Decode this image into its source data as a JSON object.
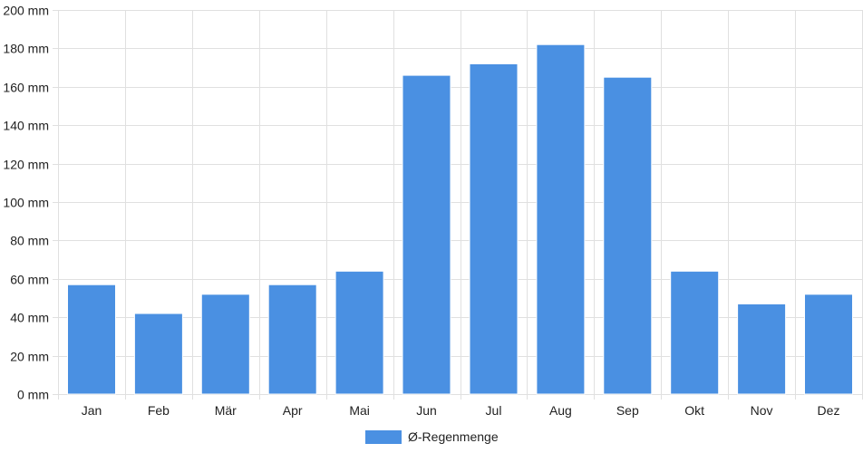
{
  "chart_data": {
    "type": "bar",
    "categories": [
      "Jan",
      "Feb",
      "Mär",
      "Apr",
      "Mai",
      "Jun",
      "Jul",
      "Aug",
      "Sep",
      "Okt",
      "Nov",
      "Dez"
    ],
    "series": [
      {
        "name": "Ø-Regenmenge",
        "values": [
          57,
          42,
          52,
          57,
          64,
          166,
          172,
          182,
          165,
          64,
          47,
          52
        ]
      }
    ],
    "y_unit": "mm",
    "ylim": [
      0,
      200
    ],
    "ytick_step": 20,
    "grid": true,
    "legend": "bottom-center",
    "bar_color": "#4a90e2",
    "grid_color": "#e0e0e0"
  }
}
